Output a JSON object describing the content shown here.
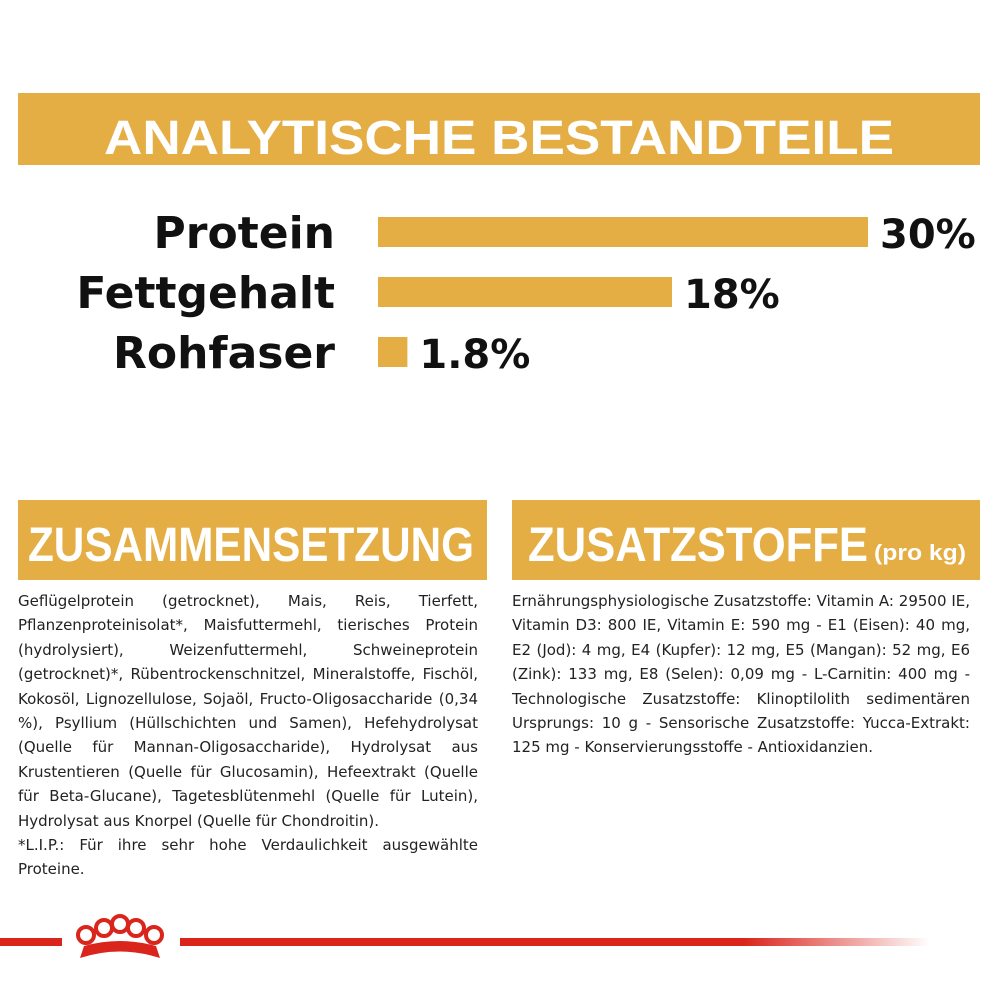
{
  "header": {
    "title": "ANALYTISCHE BESTANDTEILE"
  },
  "chart_data": {
    "type": "bar",
    "orientation": "horizontal",
    "categories": [
      "Protein",
      "Fettgehalt",
      "Rohfaser"
    ],
    "values": [
      30,
      18,
      1.8
    ],
    "value_labels": [
      "30%",
      "18%",
      "1.8%"
    ],
    "color": "#e5ae45",
    "xlim": [
      0,
      30
    ]
  },
  "sections": [
    {
      "title": "ZUSAMMENSETZUNG",
      "paragraphs": [
        "Geflügelprotein (getrocknet), Mais, Reis, Tierfett, Pflanzenproteinisolat*, Maisfuttermehl, tierisches Protein (hydrolysiert), Weizenfuttermehl, Schweineprotein (getrocknet)*, Rübentrockenschnitzel, Mineralstoffe, Fischöl, Kokosöl, Lignozellulose, Sojaöl, Fructo-Oligosaccharide (0,34 %), Psyllium (Hüllschichten und Samen), Hefehydrolysat (Quelle für Mannan-Oligosaccharide), Hydrolysat aus Krustentieren (Quelle für Glucosamin), Hefeextrakt (Quelle für Beta-Glucane), Tagetesblütenmehl (Quelle für Lutein), Hydrolysat aus Knorpel (Quelle für Chondroitin).",
        "*L.I.P.: Für ihre sehr hohe Verdaulichkeit ausgewählte Proteine."
      ]
    },
    {
      "title": "ZUSATZSTOFFE",
      "subtitle": "(pro kg)",
      "paragraphs": [
        "Ernährungsphysiologische Zusatzstoffe: Vitamin A: 29500 IE, Vitamin D3: 800 IE, Vitamin E: 590 mg - E1 (Eisen): 40 mg, E2 (Jod): 4 mg, E4 (Kupfer): 12 mg, E5 (Mangan): 52 mg, E6 (Zink): 133 mg, E8 (Selen): 0,09 mg - L-Carnitin: 400 mg - Technologische Zusatzstoffe: Klinoptilolith sedimentären Ursprungs: 10 g - Sensorische Zusatzstoffe: Yucca-Extrakt: 125 mg - Konservierungsstoffe - Antioxidanzien."
      ]
    }
  ]
}
